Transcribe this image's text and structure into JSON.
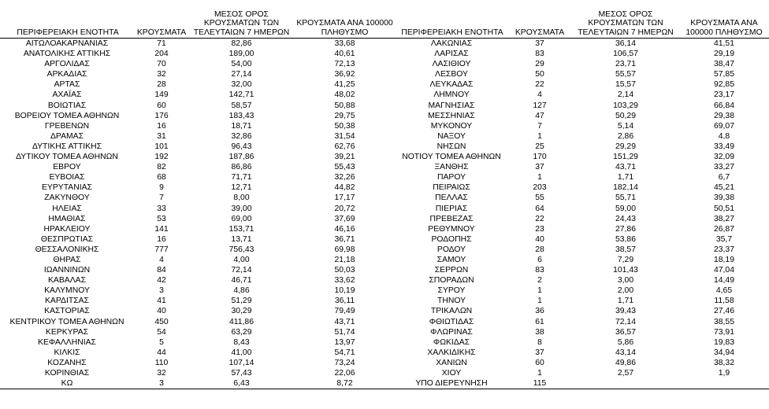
{
  "headers": {
    "region": "ΠΕΡΙΦΕΡΕΙΑΚΗ ΕΝΟΤΗΤΑ",
    "cases": "ΚΡΟΥΣΜΑΤΑ",
    "avg7": "ΜΕΣΟΣ ΟΡΟΣ ΚΡΟΥΣΜΑΤΩΝ ΤΩΝ ΤΕΛΕΥΤΑΙΩΝ 7 ΗΜΕΡΩΝ",
    "per100k": "ΚΡΟΥΣΜΑΤΑ ΑΝΑ 100000 ΠΛΗΘΥΣΜΟ"
  },
  "left_rows": [
    [
      "ΑΙΤΩΛΟΑΚΑΡΝΑΝΙΑΣ",
      "71",
      "82,86",
      "33,68"
    ],
    [
      "ΑΝΑΤΟΛΙΚΗΣ ΑΤΤΙΚΗΣ",
      "204",
      "189,00",
      "40,61"
    ],
    [
      "ΑΡΓΟΛΙΔΑΣ",
      "70",
      "54,00",
      "72,13"
    ],
    [
      "ΑΡΚΑΔΙΑΣ",
      "32",
      "27,14",
      "36,92"
    ],
    [
      "ΑΡΤΑΣ",
      "28",
      "32,00",
      "41,25"
    ],
    [
      "ΑΧΑΪΑΣ",
      "149",
      "142,71",
      "48,02"
    ],
    [
      "ΒΟΙΩΤΙΑΣ",
      "60",
      "58,57",
      "50,88"
    ],
    [
      "ΒΟΡΕΙΟΥ ΤΟΜΕΑ ΑΘΗΝΩΝ",
      "176",
      "183,43",
      "29,75"
    ],
    [
      "ΓΡΕΒΕΝΩΝ",
      "16",
      "18,71",
      "50,38"
    ],
    [
      "ΔΡΑΜΑΣ",
      "31",
      "32,86",
      "31,54"
    ],
    [
      "ΔΥΤΙΚΗΣ ΑΤΤΙΚΗΣ",
      "101",
      "96,43",
      "62,76"
    ],
    [
      "ΔΥΤΙΚΟΥ ΤΟΜΕΑ ΑΘΗΝΩΝ",
      "192",
      "187,86",
      "39,21"
    ],
    [
      "ΕΒΡΟΥ",
      "82",
      "86,86",
      "55,43"
    ],
    [
      "ΕΥΒΟΙΑΣ",
      "68",
      "71,71",
      "32,26"
    ],
    [
      "ΕΥΡΥΤΑΝΙΑΣ",
      "9",
      "12,71",
      "44,82"
    ],
    [
      "ΖΑΚΥΝΘΟΥ",
      "7",
      "8,00",
      "17,17"
    ],
    [
      "ΗΛΕΙΑΣ",
      "33",
      "39,00",
      "20,72"
    ],
    [
      "ΗΜΑΘΙΑΣ",
      "53",
      "69,00",
      "37,69"
    ],
    [
      "ΗΡΑΚΛΕΙΟΥ",
      "141",
      "153,71",
      "46,16"
    ],
    [
      "ΘΕΣΠΡΩΤΙΑΣ",
      "16",
      "13,71",
      "36,71"
    ],
    [
      "ΘΕΣΣΑΛΟΝΙΚΗΣ",
      "777",
      "756,43",
      "69,98"
    ],
    [
      "ΘΗΡΑΣ",
      "4",
      "4,00",
      "21,18"
    ],
    [
      "ΙΩΑΝΝΙΝΩΝ",
      "84",
      "72,14",
      "50,03"
    ],
    [
      "ΚΑΒΑΛΑΣ",
      "42",
      "46,71",
      "33,62"
    ],
    [
      "ΚΑΛΥΜΝΟΥ",
      "3",
      "4,86",
      "10,19"
    ],
    [
      "ΚΑΡΔΙΤΣΑΣ",
      "41",
      "51,29",
      "36,11"
    ],
    [
      "ΚΑΣΤΟΡΙΑΣ",
      "40",
      "30,29",
      "79,49"
    ],
    [
      "ΚΕΝΤΡΙΚΟΥ ΤΟΜΕΑ ΑΘΗΝΩΝ",
      "450",
      "411,86",
      "43,71"
    ],
    [
      "ΚΕΡΚΥΡΑΣ",
      "54",
      "63,29",
      "51,74"
    ],
    [
      "ΚΕΦΑΛΛΗΝΙΑΣ",
      "5",
      "8,43",
      "13,97"
    ],
    [
      "ΚΙΛΚΙΣ",
      "44",
      "41,00",
      "54,71"
    ],
    [
      "ΚΟΖΑΝΗΣ",
      "110",
      "107,14",
      "73,24"
    ],
    [
      "ΚΟΡΙΝΘΙΑΣ",
      "32",
      "57,43",
      "22,06"
    ],
    [
      "ΚΩ",
      "3",
      "6,43",
      "8,72"
    ]
  ],
  "right_rows": [
    [
      "ΛΑΚΩΝΙΑΣ",
      "37",
      "36,14",
      "41,51"
    ],
    [
      "ΛΑΡΙΣΑΣ",
      "83",
      "106,57",
      "29,19"
    ],
    [
      "ΛΑΣΙΘΙΟΥ",
      "29",
      "23,71",
      "38,47"
    ],
    [
      "ΛΕΣΒΟΥ",
      "50",
      "55,57",
      "57,85"
    ],
    [
      "ΛΕΥΚΑΔΑΣ",
      "22",
      "15,57",
      "92,85"
    ],
    [
      "ΛΗΜΝΟΥ",
      "4",
      "2,14",
      "23,17"
    ],
    [
      "ΜΑΓΝΗΣΙΑΣ",
      "127",
      "103,29",
      "66,84"
    ],
    [
      "ΜΕΣΣΗΝΙΑΣ",
      "47",
      "50,29",
      "29,38"
    ],
    [
      "ΜΥΚΟΝΟΥ",
      "7",
      "5,14",
      "69,07"
    ],
    [
      "ΝΑΞΟΥ",
      "1",
      "2,86",
      "4,8"
    ],
    [
      "ΝΗΣΩΝ",
      "25",
      "29,29",
      "33,49"
    ],
    [
      "ΝΟΤΙΟΥ ΤΟΜΕΑ ΑΘΗΝΩΝ",
      "170",
      "151,29",
      "32,09"
    ],
    [
      "ΞΑΝΘΗΣ",
      "37",
      "43,71",
      "33,27"
    ],
    [
      "ΠΑΡΟΥ",
      "1",
      "1,71",
      "6,7"
    ],
    [
      "ΠΕΙΡΑΙΩΣ",
      "203",
      "182,14",
      "45,21"
    ],
    [
      "ΠΕΛΛΑΣ",
      "55",
      "55,71",
      "39,38"
    ],
    [
      "ΠΙΕΡΙΑΣ",
      "64",
      "59,00",
      "50,51"
    ],
    [
      "ΠΡΕΒΕΖΑΣ",
      "22",
      "24,43",
      "38,27"
    ],
    [
      "ΡΕΘΥΜΝΟΥ",
      "23",
      "27,86",
      "26,87"
    ],
    [
      "ΡΟΔΟΠΗΣ",
      "40",
      "53,86",
      "35,7"
    ],
    [
      "ΡΟΔΟΥ",
      "28",
      "38,57",
      "23,37"
    ],
    [
      "ΣΑΜΟΥ",
      "6",
      "7,29",
      "18,19"
    ],
    [
      "ΣΕΡΡΩΝ",
      "83",
      "101,43",
      "47,04"
    ],
    [
      "ΣΠΟΡΑΔΩΝ",
      "2",
      "3,00",
      "14,49"
    ],
    [
      "ΣΥΡΟΥ",
      "1",
      "2,00",
      "4,65"
    ],
    [
      "ΤΗΝΟΥ",
      "1",
      "1,71",
      "11,58"
    ],
    [
      "ΤΡΙΚΑΛΩΝ",
      "36",
      "39,43",
      "27,46"
    ],
    [
      "ΦΘΙΩΤΙΔΑΣ",
      "61",
      "72,14",
      "38,55"
    ],
    [
      "ΦΛΩΡΙΝΑΣ",
      "38",
      "36,57",
      "73,91"
    ],
    [
      "ΦΩΚΙΔΑΣ",
      "8",
      "5,86",
      "19,83"
    ],
    [
      "ΧΑΛΚΙΔΙΚΗΣ",
      "37",
      "43,14",
      "34,94"
    ],
    [
      "ΧΑΝΙΩΝ",
      "60",
      "49,86",
      "38,32"
    ],
    [
      "ΧΙΟΥ",
      "1",
      "2,57",
      "1,9"
    ],
    [
      "ΥΠΟ ΔΙΕΡΕΥΝΗΣΗ",
      "115",
      "",
      ""
    ]
  ]
}
